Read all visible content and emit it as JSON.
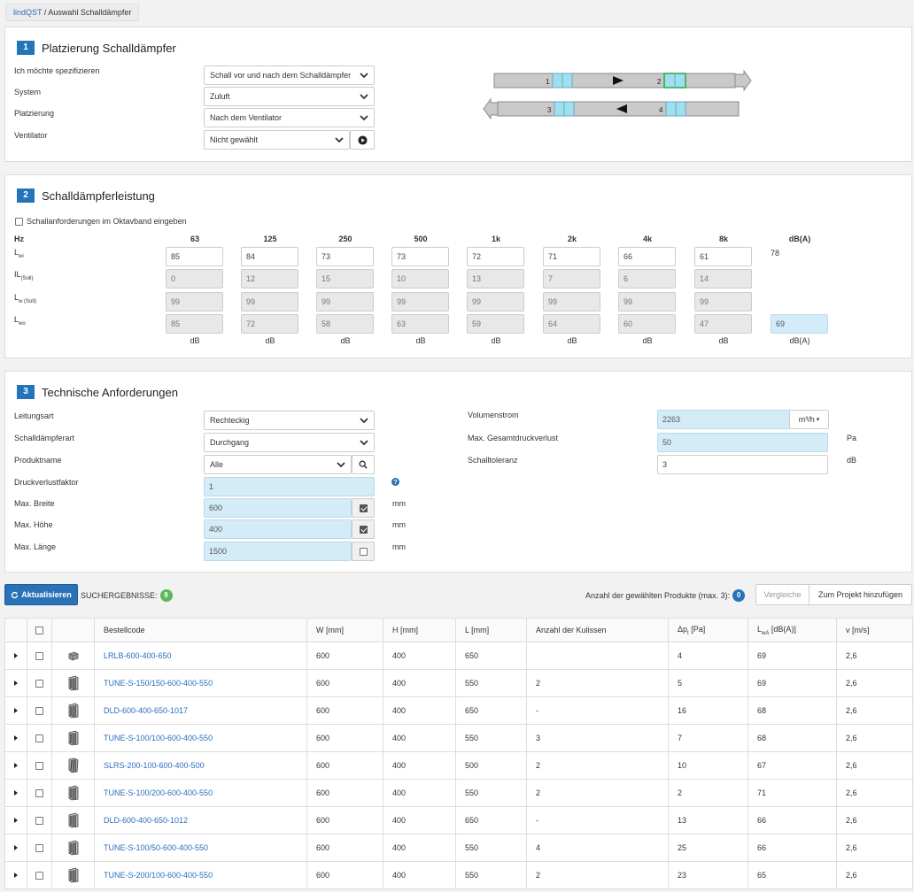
{
  "breadcrumb": {
    "root": "lindQST",
    "separator": " / ",
    "current": "Auswahl Schalldämpfer"
  },
  "section1": {
    "number": "1",
    "title": "Platzierung Schalldämpfer",
    "fields": [
      {
        "label": "Ich möchte spezifizieren",
        "value": "Schall vor und nach dem Schalldämpfer"
      },
      {
        "label": "System",
        "value": "Zuluft"
      },
      {
        "label": "Platzierung",
        "value": "Nach dem Ventilator"
      },
      {
        "label": "Ventilator",
        "value": "Nicht gewählt"
      }
    ],
    "diagram": {
      "labels": [
        "1",
        "2",
        "3",
        "4"
      ]
    }
  },
  "section2": {
    "number": "2",
    "title": "Schalldämpferleistung",
    "octave_checkbox_label": "Schallanforderungen im Oktavband eingeben",
    "hz_label": "Hz",
    "frequencies": [
      "63",
      "125",
      "250",
      "500",
      "1k",
      "2k",
      "4k",
      "8k"
    ],
    "dba_header": "dB(A)",
    "rows": [
      {
        "label": "L",
        "sub": "wi",
        "values": [
          "85",
          "84",
          "73",
          "73",
          "72",
          "71",
          "66",
          "61"
        ],
        "total": "78"
      },
      {
        "label": "IL",
        "sub": "(Soll)",
        "values": [
          "0",
          "12",
          "15",
          "10",
          "13",
          "7",
          "6",
          "14"
        ],
        "total": ""
      },
      {
        "label": "L",
        "sub": "w (Soll)",
        "values": [
          "99",
          "99",
          "99",
          "99",
          "99",
          "99",
          "99",
          "99"
        ],
        "total": ""
      },
      {
        "label": "L",
        "sub": "wo",
        "values": [
          "85",
          "72",
          "58",
          "63",
          "59",
          "64",
          "60",
          "47"
        ],
        "total": "69"
      }
    ],
    "unit_db": "dB",
    "unit_dba": "dB(A)"
  },
  "section3": {
    "number": "3",
    "title": "Technische Anforderungen",
    "leitungsart": {
      "label": "Leitungsart",
      "value": "Rechteckig"
    },
    "schalldaempferart": {
      "label": "Schalldämpferart",
      "value": "Durchgang"
    },
    "produktname": {
      "label": "Produktname",
      "value": "Alle"
    },
    "druckverlustfaktor": {
      "label": "Druckverlustfaktor",
      "value": "1"
    },
    "max_breite": {
      "label": "Max. Breite",
      "value": "600",
      "unit": "mm",
      "checked": true
    },
    "max_hoehe": {
      "label": "Max. Höhe",
      "value": "400",
      "unit": "mm",
      "checked": true
    },
    "max_laenge": {
      "label": "Max. Länge",
      "value": "1500",
      "unit": "mm",
      "checked": false
    },
    "volumenstrom": {
      "label": "Volumenstrom",
      "value": "2263",
      "unit": "m³/h"
    },
    "max_gesamtdruckverlust": {
      "label": "Max. Gesamtdruckverlust",
      "value": "50",
      "unit": "Pa"
    },
    "schalltoleranz": {
      "label": "Schalltoleranz",
      "value": "3",
      "unit": "dB"
    }
  },
  "toolbar": {
    "refresh_label": "Aktualisieren",
    "results_label": "SUCHERGEBNISSE:",
    "results_count": "9",
    "selected_label": "Anzahl der gewählten Produkte (max. 3):",
    "selected_count": "0",
    "compare_label": "Vergleiche",
    "add_project_label": "Zum Projekt hinzufügen"
  },
  "table": {
    "headers": [
      "Bestellcode",
      "W [mm]",
      "H [mm]",
      "L [mm]",
      "Anzahl der Kulissen",
      "Δp",
      "t",
      " [Pa]",
      "L",
      "wA",
      " [dB(A)]",
      "v [m/s]"
    ],
    "rows": [
      {
        "code": "LRLB-600-400-650",
        "w": "600",
        "h": "400",
        "l": "650",
        "kulissen": "",
        "dp": "4",
        "lwa": "69",
        "v": "2,6",
        "icon": "box-duct-icon"
      },
      {
        "code": "TUNE-S-150/150-600-400-550",
        "w": "600",
        "h": "400",
        "l": "550",
        "kulissen": "2",
        "dp": "5",
        "lwa": "69",
        "v": "2,6",
        "icon": "baffle-silencer-icon"
      },
      {
        "code": "DLD-600-400-650-1017",
        "w": "600",
        "h": "400",
        "l": "650",
        "kulissen": "-",
        "dp": "16",
        "lwa": "68",
        "v": "2,6",
        "icon": "baffle-silencer-icon"
      },
      {
        "code": "TUNE-S-100/100-600-400-550",
        "w": "600",
        "h": "400",
        "l": "550",
        "kulissen": "3",
        "dp": "7",
        "lwa": "68",
        "v": "2,6",
        "icon": "baffle-silencer-icon"
      },
      {
        "code": "SLRS-200-100-600-400-500",
        "w": "600",
        "h": "400",
        "l": "500",
        "kulissen": "2",
        "dp": "10",
        "lwa": "67",
        "v": "2,6",
        "icon": "slanted-silencer-icon"
      },
      {
        "code": "TUNE-S-100/200-600-400-550",
        "w": "600",
        "h": "400",
        "l": "550",
        "kulissen": "2",
        "dp": "2",
        "lwa": "71",
        "v": "2,6",
        "icon": "baffle-silencer-icon"
      },
      {
        "code": "DLD-600-400-650-1012",
        "w": "600",
        "h": "400",
        "l": "650",
        "kulissen": "-",
        "dp": "13",
        "lwa": "66",
        "v": "2,6",
        "icon": "baffle-silencer-icon"
      },
      {
        "code": "TUNE-S-100/50-600-400-550",
        "w": "600",
        "h": "400",
        "l": "550",
        "kulissen": "4",
        "dp": "25",
        "lwa": "66",
        "v": "2,6",
        "icon": "baffle-silencer-icon"
      },
      {
        "code": "TUNE-S-200/100-600-400-550",
        "w": "600",
        "h": "400",
        "l": "550",
        "kulissen": "2",
        "dp": "23",
        "lwa": "65",
        "v": "2,6",
        "icon": "baffle-silencer-icon"
      }
    ]
  },
  "colors": {
    "primary": "#2a72b8",
    "highlight": "#d3ecf8",
    "green_badge": "#5cb85c",
    "blue_badge": "#2474b9"
  }
}
